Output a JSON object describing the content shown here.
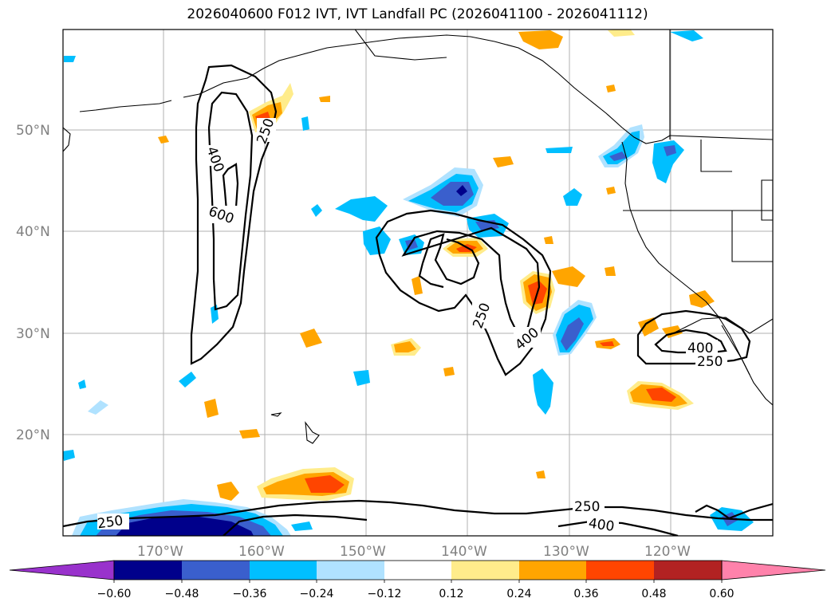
{
  "title": "2026040600 F012 IVT, IVT Landfall PC (2026041100 - 2026041112)",
  "lat_labels": [
    "50°N",
    "40°N",
    "30°N",
    "20°N"
  ],
  "lon_labels": [
    "170°W",
    "160°W",
    "150°W",
    "140°W",
    "130°W",
    "120°W"
  ],
  "contour_labels": {
    "c400_west": "400",
    "c600_west": "600",
    "c250_north": "250",
    "c250_center": "250",
    "c400_center": "400",
    "c400_east": "400",
    "c250_east": "250",
    "c250_south_e": "250",
    "c400_south": "400",
    "c250_south_w": "250"
  },
  "colorbar": {
    "ticks": [
      "−0.60",
      "−0.48",
      "−0.36",
      "−0.24",
      "−0.12",
      "0.12",
      "0.24",
      "0.36",
      "0.48",
      "0.60"
    ],
    "colors": {
      "under": "#9932cc",
      "b1": "#00008b",
      "b2": "#3a5fcd",
      "b3": "#00bfff",
      "b4": "#b0e2ff",
      "b5": "#ffffff",
      "b6": "#ffec8b",
      "b7": "#ffa500",
      "b8": "#ff4500",
      "b9": "#b22222",
      "over": "#ff82ab"
    }
  }
}
